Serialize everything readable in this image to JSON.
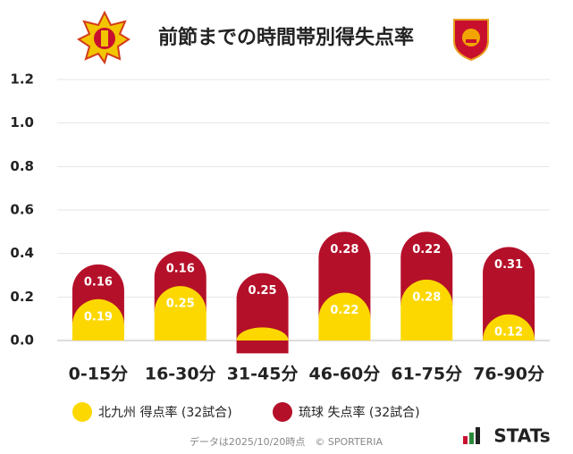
{
  "chart_data": {
    "type": "stacked_bar",
    "title": "前節までの時間帯別得失点率",
    "categories": [
      "0-15分",
      "16-30分",
      "31-45分",
      "46-60分",
      "61-75分",
      "76-90分"
    ],
    "series": [
      {
        "name": "北九州 得点率 (32試合)",
        "color": "#fcd800",
        "values": [
          0.19,
          0.25,
          0.06,
          0.22,
          0.28,
          0.12
        ],
        "value_labels": [
          "0.19",
          "0.25",
          null,
          "0.22",
          "0.28",
          "0.12"
        ]
      },
      {
        "name": "琉球 失点率 (32試合)",
        "color": "#b5102a",
        "values": [
          0.16,
          0.16,
          0.25,
          0.28,
          0.22,
          0.31
        ]
      }
    ],
    "ylim": [
      0,
      1.2
    ],
    "yticks": [
      {
        "value": 0,
        "label": "0.0"
      },
      0.2,
      0.4,
      0.6,
      0.8,
      {
        "value": 1,
        "label": "1.0"
      },
      1.2
    ],
    "grid": true,
    "footer": "データは2025/10/20時点　© SPORTERIA",
    "brand": "STATs"
  }
}
